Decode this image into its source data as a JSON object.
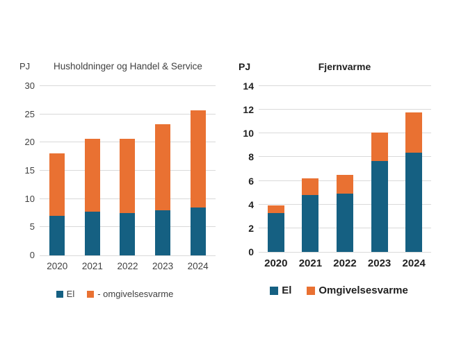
{
  "page": {
    "background": "#ffffff"
  },
  "colors": {
    "el": "#156082",
    "omgivelsesvarme": "#E97132",
    "gridline": "#D9D9D9",
    "left_text": "#404040",
    "right_text": "#1f1f1f"
  },
  "chart_data": [
    {
      "type": "bar",
      "stacked": true,
      "title": "Husholdninger og Handel & Service",
      "ylabel": "PJ",
      "xlabel": "",
      "categories": [
        "2020",
        "2021",
        "2022",
        "2023",
        "2024"
      ],
      "series": [
        {
          "name": "El",
          "color": "#156082",
          "values": [
            7.0,
            7.8,
            7.5,
            8.0,
            8.5
          ]
        },
        {
          "name": "- omgivelsesvarme",
          "color": "#E97132",
          "values": [
            11.1,
            12.9,
            13.2,
            15.3,
            17.2
          ]
        }
      ],
      "totals": [
        18.1,
        20.7,
        20.7,
        23.3,
        25.7
      ],
      "ylim": [
        0,
        30
      ],
      "yticks": [
        30,
        25,
        20,
        15,
        10,
        5,
        0
      ],
      "grid": true,
      "legend_position": "bottom"
    },
    {
      "type": "bar",
      "stacked": true,
      "title": "Fjernvarme",
      "ylabel": "PJ",
      "xlabel": "",
      "categories": [
        "2020",
        "2021",
        "2022",
        "2023",
        "2024"
      ],
      "series": [
        {
          "name": "El",
          "color": "#156082",
          "values": [
            3.3,
            4.8,
            4.9,
            7.7,
            8.4
          ]
        },
        {
          "name": "Omgivelsesvarme",
          "color": "#E97132",
          "values": [
            0.6,
            1.4,
            1.6,
            2.35,
            3.35
          ]
        }
      ],
      "totals": [
        3.9,
        6.2,
        6.5,
        10.05,
        11.75
      ],
      "ylim": [
        0,
        14
      ],
      "yticks": [
        14,
        12,
        10,
        8,
        6,
        4,
        2,
        0
      ],
      "grid": true,
      "legend_position": "bottom"
    }
  ]
}
